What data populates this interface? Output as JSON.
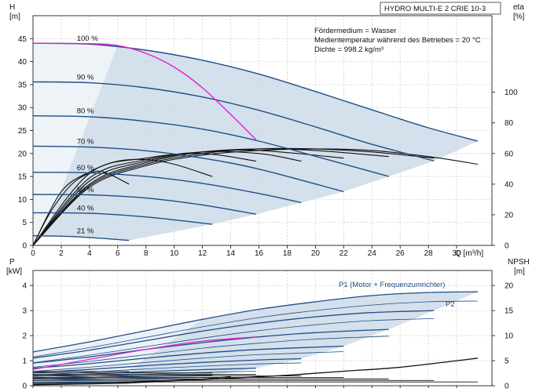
{
  "chart_data": [
    {
      "type": "line",
      "title": "HYDRO MULTI-E 2 CRIE 10-3",
      "xlabel": "Q [m³/h]",
      "ylabel_left": "H\n[m]",
      "ylabel_right": "eta\n[%]",
      "x_ticks": [
        0,
        2,
        4,
        6,
        8,
        10,
        12,
        14,
        16,
        18,
        20,
        22,
        24,
        26,
        28,
        30
      ],
      "y_ticks": [
        0,
        5,
        10,
        15,
        20,
        25,
        30,
        35,
        40,
        45
      ],
      "y2_ticks": [
        0,
        20,
        40,
        60,
        80,
        100
      ],
      "xlim": [
        0,
        32.5
      ],
      "ylim": [
        0,
        50
      ],
      "y2lim": [
        0,
        150
      ],
      "grid": true,
      "annotations": [
        "Fördermedium = Wasser",
        "Medientemperatur während des Betriebes = 20 °C",
        "Dichte = 998.2 kg/m³"
      ],
      "curve_labels": [
        "100 %",
        "90 %",
        "80 %",
        "70 %",
        "60 %",
        "50 %",
        "40 %",
        "21 %"
      ],
      "head_curves": [
        {
          "speed": "100 %",
          "x": [
            0,
            4,
            8,
            12,
            16,
            20,
            24,
            28,
            31.5
          ],
          "y": [
            44,
            43.8,
            42.5,
            40.3,
            37.3,
            33.5,
            29.5,
            25.6,
            22.7
          ]
        },
        {
          "speed": "90 %",
          "x": [
            0,
            4,
            8,
            12,
            16,
            20,
            24,
            28.4
          ],
          "y": [
            35.6,
            35.4,
            34.3,
            32.3,
            29.4,
            25.8,
            22,
            18.4
          ]
        },
        {
          "speed": "80 %",
          "x": [
            0,
            4,
            8,
            12,
            16,
            20,
            25.2
          ],
          "y": [
            28.2,
            28,
            27,
            25.3,
            22.7,
            19.4,
            15
          ]
        },
        {
          "speed": "70 %",
          "x": [
            0,
            4,
            8,
            12,
            16,
            22
          ],
          "y": [
            21.6,
            21.4,
            20.6,
            19,
            16.6,
            11.7
          ]
        },
        {
          "speed": "60 %",
          "x": [
            0,
            4,
            8,
            12,
            16,
            19
          ],
          "y": [
            15.9,
            15.8,
            15,
            13.5,
            11.3,
            9.3
          ]
        },
        {
          "speed": "50 %",
          "x": [
            0,
            4,
            8,
            12,
            15.8
          ],
          "y": [
            11.1,
            11,
            10.3,
            8.8,
            6.8
          ]
        },
        {
          "speed": "40 %",
          "x": [
            0,
            4,
            8,
            12.7
          ],
          "y": [
            7.1,
            7,
            6.2,
            4.6
          ]
        },
        {
          "speed": "21 %",
          "x": [
            0,
            3,
            6.8
          ],
          "y": [
            2.1,
            1.9,
            1.1
          ]
        }
      ],
      "limit_curve": {
        "x": [
          0,
          4,
          6,
          8,
          10,
          12,
          14,
          15.8
        ],
        "y": [
          44,
          43.9,
          43.5,
          41.8,
          38.8,
          34.3,
          28.5,
          23
        ]
      },
      "efficiency_curves": [
        {
          "x": [
            0,
            4,
            8,
            12,
            16,
            20,
            24,
            28,
            31.5
          ],
          "y": [
            0,
            38,
            52,
            59,
            62,
            63,
            62,
            58,
            53
          ]
        },
        {
          "x": [
            0,
            4,
            8,
            12,
            16,
            20,
            24,
            28.4
          ],
          "y": [
            0,
            39,
            53,
            60,
            63,
            63,
            61,
            57
          ]
        },
        {
          "x": [
            0,
            4,
            8,
            12,
            16,
            20,
            25.2
          ],
          "y": [
            0,
            40,
            54,
            61,
            63,
            62,
            58
          ]
        },
        {
          "x": [
            0,
            4,
            8,
            12,
            16,
            22
          ],
          "y": [
            0,
            42,
            55,
            61,
            62,
            57
          ]
        },
        {
          "x": [
            0,
            4,
            8,
            12,
            16,
            19
          ],
          "y": [
            0,
            44,
            56,
            61,
            60,
            55
          ]
        },
        {
          "x": [
            0,
            4,
            8,
            12,
            15.8
          ],
          "y": [
            0,
            47,
            57,
            60,
            55
          ]
        },
        {
          "x": [
            0,
            2,
            4,
            6,
            8,
            10,
            12.7
          ],
          "y": [
            0,
            35,
            48,
            55,
            56,
            53,
            45
          ]
        },
        {
          "x": [
            0,
            1,
            2,
            3,
            4,
            5,
            6.8
          ],
          "y": [
            0,
            18,
            32,
            42,
            47,
            48,
            40
          ]
        }
      ]
    },
    {
      "type": "line",
      "ylabel_left": "P\n[kW]",
      "ylabel_right": "NPSH\n[m]",
      "xlabel": "",
      "y_ticks": [
        0,
        1,
        2,
        3,
        4
      ],
      "y2_ticks": [
        0,
        5,
        10,
        15,
        20
      ],
      "xlim": [
        0,
        32.5
      ],
      "ylim": [
        0,
        4.6
      ],
      "y2lim": [
        0,
        23
      ],
      "grid": true,
      "series_labels": [
        "P1 (Motor + Frequenzumrichter)",
        "P2"
      ],
      "p1_curves": [
        {
          "x": [
            0,
            4,
            8,
            12,
            16,
            20,
            24,
            28,
            31.5
          ],
          "y": [
            1.35,
            1.75,
            2.2,
            2.65,
            3.05,
            3.35,
            3.6,
            3.72,
            3.75
          ]
        },
        {
          "x": [
            0,
            4,
            8,
            12,
            16,
            20,
            24,
            28.4
          ],
          "y": [
            1.1,
            1.42,
            1.8,
            2.18,
            2.5,
            2.75,
            2.92,
            3.0
          ]
        },
        {
          "x": [
            0,
            4,
            8,
            12,
            16,
            20,
            25.2
          ],
          "y": [
            0.9,
            1.15,
            1.45,
            1.72,
            1.95,
            2.12,
            2.25
          ]
        },
        {
          "x": [
            0,
            4,
            8,
            12,
            16,
            22
          ],
          "y": [
            0.7,
            0.88,
            1.1,
            1.3,
            1.45,
            1.58
          ]
        },
        {
          "x": [
            0,
            4,
            8,
            12,
            16,
            19
          ],
          "y": [
            0.52,
            0.65,
            0.8,
            0.93,
            1.03,
            1.08
          ]
        },
        {
          "x": [
            0,
            4,
            8,
            12,
            15.8
          ],
          "y": [
            0.38,
            0.46,
            0.56,
            0.64,
            0.7
          ]
        },
        {
          "x": [
            0,
            4,
            8,
            12.7
          ],
          "y": [
            0.27,
            0.32,
            0.38,
            0.42
          ]
        },
        {
          "x": [
            0,
            3,
            6.8
          ],
          "y": [
            0.1,
            0.12,
            0.14
          ]
        }
      ],
      "p2_curves": [
        {
          "x": [
            0,
            4,
            8,
            12,
            16,
            20,
            24,
            28,
            31.5
          ],
          "y": [
            1.15,
            1.52,
            1.93,
            2.35,
            2.72,
            3.0,
            3.22,
            3.35,
            3.38
          ]
        },
        {
          "x": [
            0,
            4,
            8,
            12,
            16,
            20,
            24,
            28.4
          ],
          "y": [
            0.92,
            1.22,
            1.56,
            1.9,
            2.2,
            2.43,
            2.6,
            2.68
          ]
        },
        {
          "x": [
            0,
            4,
            8,
            12,
            16,
            20,
            25.2
          ],
          "y": [
            0.74,
            0.97,
            1.24,
            1.5,
            1.7,
            1.86,
            1.98
          ]
        },
        {
          "x": [
            0,
            4,
            8,
            12,
            16,
            22
          ],
          "y": [
            0.57,
            0.74,
            0.93,
            1.1,
            1.24,
            1.36
          ]
        },
        {
          "x": [
            0,
            4,
            8,
            12,
            16,
            19
          ],
          "y": [
            0.42,
            0.54,
            0.67,
            0.78,
            0.87,
            0.91
          ]
        },
        {
          "x": [
            0,
            4,
            8,
            12,
            15.8
          ],
          "y": [
            0.3,
            0.38,
            0.46,
            0.53,
            0.58
          ]
        },
        {
          "x": [
            0,
            4,
            8,
            12.7
          ],
          "y": [
            0.2,
            0.25,
            0.3,
            0.33
          ]
        },
        {
          "x": [
            0,
            3,
            6.8
          ],
          "y": [
            0.07,
            0.09,
            0.1
          ]
        }
      ],
      "p_limit_curve": {
        "x": [
          0,
          4,
          8,
          12,
          15.8
        ],
        "y": [
          0.65,
          1.05,
          1.45,
          1.78,
          1.95
        ]
      },
      "npsh_curve": {
        "x": [
          0,
          6,
          10,
          14,
          18,
          22,
          26,
          31.5
        ],
        "y": [
          0.2,
          0.5,
          1.0,
          1.5,
          2.1,
          2.9,
          3.7,
          5.5
        ]
      },
      "npsh_extra": {
        "x": [
          6,
          10,
          12,
          14
        ],
        "y": [
          0.7,
          1.1,
          1.35,
          1.8
        ]
      }
    }
  ]
}
